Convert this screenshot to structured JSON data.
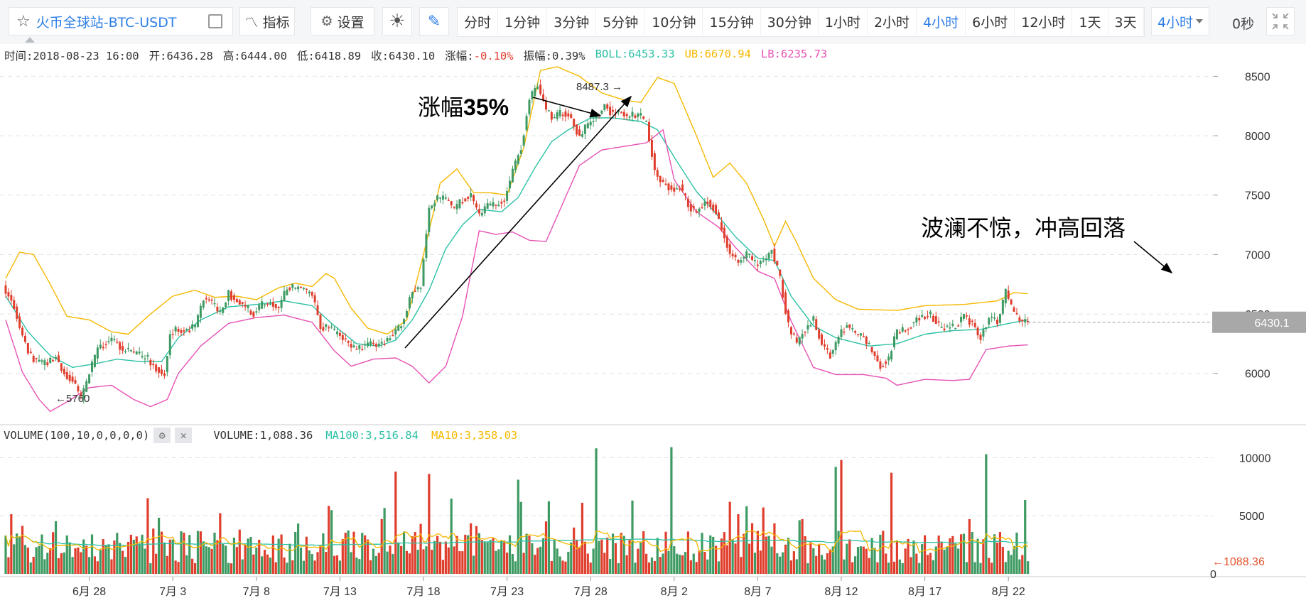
{
  "toolbar": {
    "symbol": "火币全球站-BTC-USDT",
    "indicator_label": "指标",
    "settings_label": "设置",
    "periods": [
      "分时",
      "1分钟",
      "3分钟",
      "5分钟",
      "10分钟",
      "15分钟",
      "30分钟",
      "1小时",
      "2小时",
      "4小时",
      "6小时",
      "12小时",
      "1天",
      "3天"
    ],
    "active_period": "4小时",
    "period_select": "4小时",
    "countdown": "0秒"
  },
  "info": {
    "time": "时间:2018-08-23 16:00",
    "open": "开:6436.28",
    "high": "高:6444.00",
    "low": "低:6418.89",
    "close": "收:6430.10",
    "change_label": "涨幅:",
    "change_value": "-0.10%",
    "amplitude": "振幅:0.39%",
    "boll": "BOLL:6453.33",
    "ub": "UB:6670.94",
    "lb": "LB:6235.73"
  },
  "volume_info": {
    "title": "VOLUME(100,10,0,0,0,0)",
    "volume": "VOLUME:1,088.36",
    "ma100": "MA100:3,516.84",
    "ma10": "MA10:3,358.03"
  },
  "colors": {
    "up": "#3d9a62",
    "down": "#e03e2d",
    "boll_mid": "#2cc1a5",
    "boll_ub": "#f5b800",
    "boll_lb": "#e652b4",
    "vol_ma100": "#2cc1a5",
    "vol_ma10": "#f5b800",
    "accent": "#2f7fe6"
  },
  "chart_data": {
    "type": "candlestick",
    "x_ticks": [
      "6月 28",
      "7月 3",
      "7月 8",
      "7月 13",
      "7月 18",
      "7月 23",
      "7月 28",
      "8月 2",
      "8月 7",
      "8月 12",
      "8月 17",
      "8月 22"
    ],
    "y_ticks": [
      6000,
      6500,
      7000,
      7500,
      8000,
      8500
    ],
    "ylim": [
      5580,
      8640
    ],
    "volume_ticks": [
      0,
      5000,
      10000
    ],
    "volume_ylim": [
      0,
      11000
    ],
    "last_price_label": "6430.1",
    "last_volume_label": "1088.36",
    "max_label": "8487.3",
    "min_label": "5760",
    "annotations": [
      {
        "text_plain": "涨幅",
        "text_bold": "35%"
      },
      {
        "text": "波澜不惊，冲高回落"
      }
    ],
    "close_anchors": [
      [
        0,
        6700
      ],
      [
        3,
        6550
      ],
      [
        6,
        6300
      ],
      [
        9,
        6150
      ],
      [
        12,
        6080
      ],
      [
        15,
        6100
      ],
      [
        18,
        6140
      ],
      [
        21,
        6000
      ],
      [
        24,
        5950
      ],
      [
        27,
        5780
      ],
      [
        30,
        6000
      ],
      [
        33,
        6200
      ],
      [
        36,
        6250
      ],
      [
        39,
        6280
      ],
      [
        42,
        6200
      ],
      [
        45,
        6180
      ],
      [
        48,
        6150
      ],
      [
        51,
        6120
      ],
      [
        54,
        6050
      ],
      [
        57,
        6000
      ],
      [
        59,
        6330
      ],
      [
        62,
        6380
      ],
      [
        65,
        6360
      ],
      [
        68,
        6400
      ],
      [
        71,
        6640
      ],
      [
        74,
        6600
      ],
      [
        77,
        6500
      ],
      [
        80,
        6680
      ],
      [
        83,
        6600
      ],
      [
        86,
        6560
      ],
      [
        89,
        6500
      ],
      [
        92,
        6580
      ],
      [
        95,
        6600
      ],
      [
        98,
        6560
      ],
      [
        101,
        6730
      ],
      [
        104,
        6720
      ],
      [
        107,
        6700
      ],
      [
        110,
        6660
      ],
      [
        113,
        6400
      ],
      [
        116,
        6380
      ],
      [
        119,
        6330
      ],
      [
        122,
        6270
      ],
      [
        125,
        6200
      ],
      [
        128,
        6220
      ],
      [
        131,
        6250
      ],
      [
        134,
        6240
      ],
      [
        137,
        6290
      ],
      [
        140,
        6360
      ],
      [
        143,
        6460
      ],
      [
        146,
        6700
      ],
      [
        149,
        6740
      ],
      [
        152,
        7400
      ],
      [
        155,
        7470
      ],
      [
        158,
        7460
      ],
      [
        161,
        7380
      ],
      [
        164,
        7460
      ],
      [
        167,
        7500
      ],
      [
        170,
        7320
      ],
      [
        173,
        7400
      ],
      [
        176,
        7420
      ],
      [
        179,
        7460
      ],
      [
        182,
        7700
      ],
      [
        185,
        7900
      ],
      [
        188,
        8300
      ],
      [
        191,
        8440
      ],
      [
        194,
        8200
      ],
      [
        197,
        8150
      ],
      [
        200,
        8200
      ],
      [
        203,
        8160
      ],
      [
        206,
        7980
      ],
      [
        209,
        8100
      ],
      [
        212,
        8180
      ],
      [
        215,
        8250
      ],
      [
        218,
        8180
      ],
      [
        221,
        8200
      ],
      [
        224,
        8160
      ],
      [
        227,
        8180
      ],
      [
        230,
        8110
      ],
      [
        233,
        7700
      ],
      [
        236,
        7600
      ],
      [
        239,
        7550
      ],
      [
        242,
        7580
      ],
      [
        245,
        7420
      ],
      [
        248,
        7350
      ],
      [
        251,
        7460
      ],
      [
        254,
        7400
      ],
      [
        257,
        7220
      ],
      [
        260,
        7000
      ],
      [
        263,
        6950
      ],
      [
        266,
        7000
      ],
      [
        269,
        6920
      ],
      [
        272,
        6950
      ],
      [
        275,
        7040
      ],
      [
        278,
        6800
      ],
      [
        281,
        6400
      ],
      [
        284,
        6250
      ],
      [
        287,
        6380
      ],
      [
        290,
        6450
      ],
      [
        293,
        6250
      ],
      [
        296,
        6150
      ],
      [
        299,
        6320
      ],
      [
        302,
        6400
      ],
      [
        305,
        6340
      ],
      [
        308,
        6300
      ],
      [
        311,
        6200
      ],
      [
        314,
        6060
      ],
      [
        317,
        6130
      ],
      [
        320,
        6360
      ],
      [
        323,
        6380
      ],
      [
        326,
        6440
      ],
      [
        329,
        6470
      ],
      [
        332,
        6500
      ],
      [
        335,
        6400
      ],
      [
        338,
        6380
      ],
      [
        341,
        6400
      ],
      [
        344,
        6480
      ],
      [
        347,
        6420
      ],
      [
        350,
        6300
      ],
      [
        353,
        6480
      ],
      [
        356,
        6420
      ],
      [
        359,
        6700
      ],
      [
        362,
        6500
      ],
      [
        365,
        6440
      ],
      [
        367,
        6430
      ]
    ],
    "boll_ub_anchors": [
      [
        0,
        6800
      ],
      [
        5,
        7020
      ],
      [
        10,
        7000
      ],
      [
        16,
        6750
      ],
      [
        22,
        6480
      ],
      [
        30,
        6450
      ],
      [
        38,
        6350
      ],
      [
        44,
        6330
      ],
      [
        52,
        6500
      ],
      [
        60,
        6650
      ],
      [
        68,
        6700
      ],
      [
        75,
        6640
      ],
      [
        83,
        6650
      ],
      [
        90,
        6620
      ],
      [
        98,
        6720
      ],
      [
        104,
        6760
      ],
      [
        110,
        6730
      ],
      [
        115,
        6840
      ],
      [
        118,
        6800
      ],
      [
        124,
        6550
      ],
      [
        130,
        6380
      ],
      [
        137,
        6330
      ],
      [
        144,
        6450
      ],
      [
        150,
        7000
      ],
      [
        156,
        7600
      ],
      [
        162,
        7720
      ],
      [
        168,
        7520
      ],
      [
        174,
        7520
      ],
      [
        180,
        7500
      ],
      [
        186,
        7900
      ],
      [
        192,
        8550
      ],
      [
        198,
        8580
      ],
      [
        206,
        8500
      ],
      [
        214,
        8360
      ],
      [
        222,
        8300
      ],
      [
        228,
        8280
      ],
      [
        234,
        8490
      ],
      [
        240,
        8440
      ],
      [
        248,
        8000
      ],
      [
        254,
        7650
      ],
      [
        260,
        7770
      ],
      [
        266,
        7600
      ],
      [
        272,
        7300
      ],
      [
        276,
        7070
      ],
      [
        280,
        7280
      ],
      [
        284,
        7100
      ],
      [
        290,
        6800
      ],
      [
        298,
        6620
      ],
      [
        306,
        6540
      ],
      [
        320,
        6530
      ],
      [
        330,
        6570
      ],
      [
        344,
        6580
      ],
      [
        356,
        6610
      ],
      [
        362,
        6680
      ],
      [
        367,
        6670
      ]
    ],
    "boll_mid_anchors": [
      [
        0,
        6650
      ],
      [
        8,
        6350
      ],
      [
        16,
        6150
      ],
      [
        24,
        6050
      ],
      [
        32,
        6080
      ],
      [
        40,
        6120
      ],
      [
        48,
        6100
      ],
      [
        56,
        6100
      ],
      [
        62,
        6300
      ],
      [
        70,
        6450
      ],
      [
        80,
        6560
      ],
      [
        90,
        6580
      ],
      [
        100,
        6610
      ],
      [
        110,
        6570
      ],
      [
        118,
        6400
      ],
      [
        126,
        6250
      ],
      [
        134,
        6230
      ],
      [
        140,
        6280
      ],
      [
        146,
        6450
      ],
      [
        152,
        6700
      ],
      [
        158,
        7050
      ],
      [
        164,
        7250
      ],
      [
        170,
        7380
      ],
      [
        178,
        7360
      ],
      [
        184,
        7480
      ],
      [
        190,
        7730
      ],
      [
        196,
        7950
      ],
      [
        202,
        8050
      ],
      [
        210,
        8150
      ],
      [
        218,
        8150
      ],
      [
        228,
        8120
      ],
      [
        234,
        8050
      ],
      [
        240,
        7820
      ],
      [
        248,
        7530
      ],
      [
        256,
        7320
      ],
      [
        262,
        7150
      ],
      [
        270,
        6970
      ],
      [
        276,
        6950
      ],
      [
        282,
        6650
      ],
      [
        290,
        6400
      ],
      [
        298,
        6300
      ],
      [
        310,
        6230
      ],
      [
        320,
        6250
      ],
      [
        330,
        6330
      ],
      [
        340,
        6360
      ],
      [
        350,
        6370
      ],
      [
        360,
        6420
      ],
      [
        367,
        6450
      ]
    ],
    "boll_lb_anchors": [
      [
        0,
        6450
      ],
      [
        6,
        6010
      ],
      [
        12,
        5780
      ],
      [
        16,
        5680
      ],
      [
        22,
        5760
      ],
      [
        30,
        5880
      ],
      [
        38,
        5900
      ],
      [
        46,
        5780
      ],
      [
        52,
        5720
      ],
      [
        58,
        5780
      ],
      [
        62,
        6000
      ],
      [
        70,
        6230
      ],
      [
        80,
        6420
      ],
      [
        90,
        6470
      ],
      [
        100,
        6490
      ],
      [
        110,
        6430
      ],
      [
        118,
        6190
      ],
      [
        124,
        6060
      ],
      [
        132,
        6120
      ],
      [
        140,
        6130
      ],
      [
        146,
        6060
      ],
      [
        152,
        5920
      ],
      [
        158,
        6060
      ],
      [
        164,
        6480
      ],
      [
        170,
        7200
      ],
      [
        176,
        7170
      ],
      [
        182,
        7190
      ],
      [
        188,
        7120
      ],
      [
        194,
        7110
      ],
      [
        200,
        7430
      ],
      [
        206,
        7750
      ],
      [
        214,
        7880
      ],
      [
        222,
        7910
      ],
      [
        230,
        7940
      ],
      [
        236,
        8050
      ],
      [
        240,
        7630
      ],
      [
        248,
        7360
      ],
      [
        256,
        7230
      ],
      [
        262,
        7060
      ],
      [
        270,
        6860
      ],
      [
        276,
        6800
      ],
      [
        282,
        6440
      ],
      [
        290,
        6050
      ],
      [
        298,
        5990
      ],
      [
        308,
        5990
      ],
      [
        316,
        5960
      ],
      [
        320,
        5900
      ],
      [
        330,
        5950
      ],
      [
        340,
        5940
      ],
      [
        346,
        5950
      ],
      [
        352,
        6200
      ],
      [
        360,
        6230
      ],
      [
        367,
        6240
      ]
    ],
    "volume_series_seed": 20180823,
    "volume_spikes": [
      [
        212,
        10800
      ],
      [
        239,
        10900
      ],
      [
        298,
        9200
      ],
      [
        300,
        9800
      ],
      [
        352,
        10300
      ],
      [
        140,
        8800
      ],
      [
        152,
        8600
      ],
      [
        184,
        8100
      ],
      [
        318,
        8700
      ]
    ]
  }
}
